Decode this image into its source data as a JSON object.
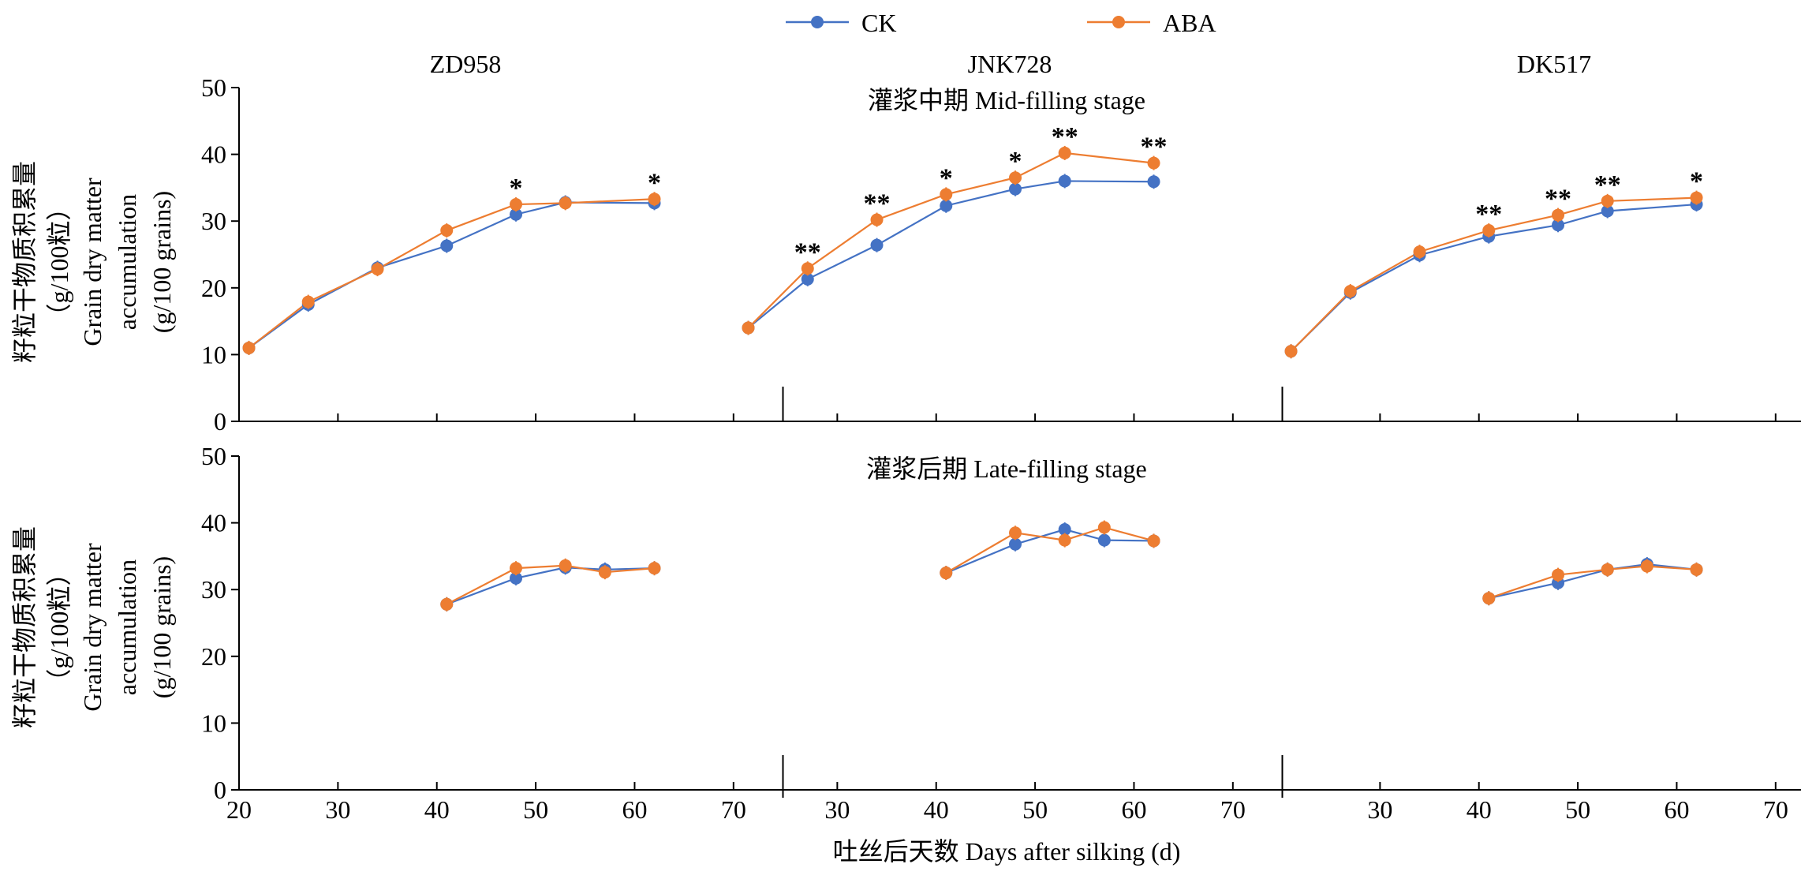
{
  "legend": {
    "placement": "top-center",
    "items": [
      {
        "label": "CK",
        "color": "#4472C4"
      },
      {
        "label": "ABA",
        "color": "#ED7D31"
      }
    ]
  },
  "axes": {
    "y_label_cn": "籽粒干物质积累量",
    "y_label_unit_cn": "（g/100粒）",
    "y_label_en_1": "Grain dry matter",
    "y_label_en_2": "accumulation",
    "y_label_en_3": "(g/100 grains)",
    "x_label": "吐丝后天数 Days after silking (d)"
  },
  "chart_data": {
    "type": "line",
    "xlim": [
      20,
      75
    ],
    "ylim": [
      0,
      50
    ],
    "x_ticks": [
      20,
      30,
      40,
      50,
      60,
      70
    ],
    "y_ticks": [
      0,
      10,
      20,
      30,
      40,
      50
    ],
    "grid": false,
    "columns": [
      "ZD958",
      "JNK728",
      "DK517"
    ],
    "rows": [
      {
        "title": "灌浆中期 Mid-filling stage",
        "panels": [
          {
            "series": [
              {
                "name": "CK",
                "x": [
                  21,
                  27,
                  34,
                  41,
                  48,
                  53,
                  62
                ],
                "y": [
                  11.0,
                  17.5,
                  23.0,
                  26.3,
                  31.0,
                  32.8,
                  32.7
                ]
              },
              {
                "name": "ABA",
                "x": [
                  21,
                  27,
                  34,
                  41,
                  48,
                  53,
                  62
                ],
                "y": [
                  11.0,
                  17.9,
                  22.8,
                  28.6,
                  32.5,
                  32.7,
                  33.3
                ]
              }
            ],
            "annotations": [
              {
                "x": 48,
                "text": "*"
              },
              {
                "x": 62,
                "text": "*"
              }
            ]
          },
          {
            "series": [
              {
                "name": "CK",
                "x": [
                  21,
                  27,
                  34,
                  41,
                  48,
                  53,
                  62
                ],
                "y": [
                  14.0,
                  21.3,
                  26.4,
                  32.3,
                  34.8,
                  36.0,
                  35.9
                ]
              },
              {
                "name": "ABA",
                "x": [
                  21,
                  27,
                  34,
                  41,
                  48,
                  53,
                  62
                ],
                "y": [
                  14.0,
                  22.9,
                  30.2,
                  34.0,
                  36.5,
                  40.2,
                  38.7
                ]
              }
            ],
            "annotations": [
              {
                "x": 27,
                "text": "**"
              },
              {
                "x": 34,
                "text": "**"
              },
              {
                "x": 41,
                "text": "*"
              },
              {
                "x": 48,
                "text": "*"
              },
              {
                "x": 53,
                "text": "**"
              },
              {
                "x": 62,
                "text": "**"
              }
            ]
          },
          {
            "series": [
              {
                "name": "CK",
                "x": [
                  21,
                  27,
                  34,
                  41,
                  48,
                  53,
                  62
                ],
                "y": [
                  10.5,
                  19.3,
                  24.9,
                  27.7,
                  29.4,
                  31.5,
                  32.5
                ]
              },
              {
                "name": "ABA",
                "x": [
                  21,
                  27,
                  34,
                  41,
                  48,
                  53,
                  62
                ],
                "y": [
                  10.5,
                  19.5,
                  25.4,
                  28.6,
                  30.9,
                  33.0,
                  33.5
                ]
              }
            ],
            "annotations": [
              {
                "x": 41,
                "text": "**"
              },
              {
                "x": 48,
                "text": "**"
              },
              {
                "x": 53,
                "text": "**"
              },
              {
                "x": 62,
                "text": "*"
              }
            ]
          }
        ]
      },
      {
        "title": "灌浆后期 Late-filling stage",
        "panels": [
          {
            "series": [
              {
                "name": "CK",
                "x": [
                  41,
                  48,
                  53,
                  57,
                  62
                ],
                "y": [
                  27.8,
                  31.7,
                  33.3,
                  33.0,
                  33.2
                ]
              },
              {
                "name": "ABA",
                "x": [
                  41,
                  48,
                  53,
                  57,
                  62
                ],
                "y": [
                  27.8,
                  33.2,
                  33.6,
                  32.6,
                  33.2
                ]
              }
            ],
            "annotations": []
          },
          {
            "series": [
              {
                "name": "CK",
                "x": [
                  41,
                  48,
                  53,
                  57,
                  62
                ],
                "y": [
                  32.5,
                  36.8,
                  39.0,
                  37.4,
                  37.3
                ]
              },
              {
                "name": "ABA",
                "x": [
                  41,
                  48,
                  53,
                  57,
                  62
                ],
                "y": [
                  32.5,
                  38.5,
                  37.4,
                  39.3,
                  37.3
                ]
              }
            ],
            "annotations": []
          },
          {
            "series": [
              {
                "name": "CK",
                "x": [
                  41,
                  48,
                  53,
                  57,
                  62
                ],
                "y": [
                  28.7,
                  31.0,
                  33.0,
                  33.8,
                  33.0
                ]
              },
              {
                "name": "ABA",
                "x": [
                  41,
                  48,
                  53,
                  57,
                  62
                ],
                "y": [
                  28.7,
                  32.2,
                  33.0,
                  33.5,
                  33.0
                ]
              }
            ],
            "annotations": []
          }
        ]
      }
    ]
  }
}
